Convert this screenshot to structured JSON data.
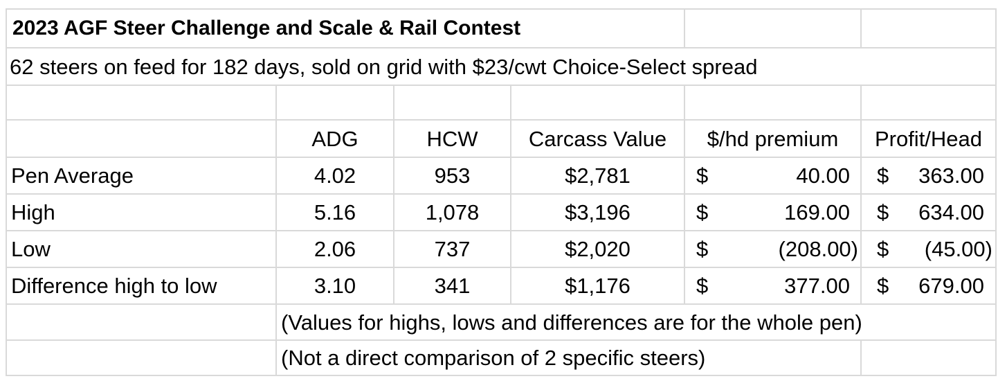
{
  "title": "2023 AGF Steer Challenge and Scale & Rail Contest",
  "subtitle": "62 steers on feed for 182 days, sold on grid with $23/cwt Choice-Select spread",
  "columns": [
    "ADG",
    "HCW",
    "Carcass Value",
    "$/hd premium",
    "Profit/Head"
  ],
  "currency_symbol": "$",
  "rows": [
    {
      "label": "Pen Average",
      "adg": "4.02",
      "hcw": "953",
      "carcass": "$2,781",
      "premium": "40.00",
      "profit": "363.00"
    },
    {
      "label": "High",
      "adg": "5.16",
      "hcw": "1,078",
      "carcass": "$3,196",
      "premium": "169.00",
      "profit": "634.00"
    },
    {
      "label": "Low",
      "adg": "2.06",
      "hcw": "737",
      "carcass": "$2,020",
      "premium": "(208.00)",
      "profit": "(45.00)"
    },
    {
      "label": "Difference high to low",
      "adg": "3.10",
      "hcw": "341",
      "carcass": "$1,176",
      "premium": "377.00",
      "profit": "679.00"
    }
  ],
  "notes": [
    "(Values for highs, lows and differences are for the whole pen)",
    "(Not a direct comparison of 2 specific steers)"
  ]
}
